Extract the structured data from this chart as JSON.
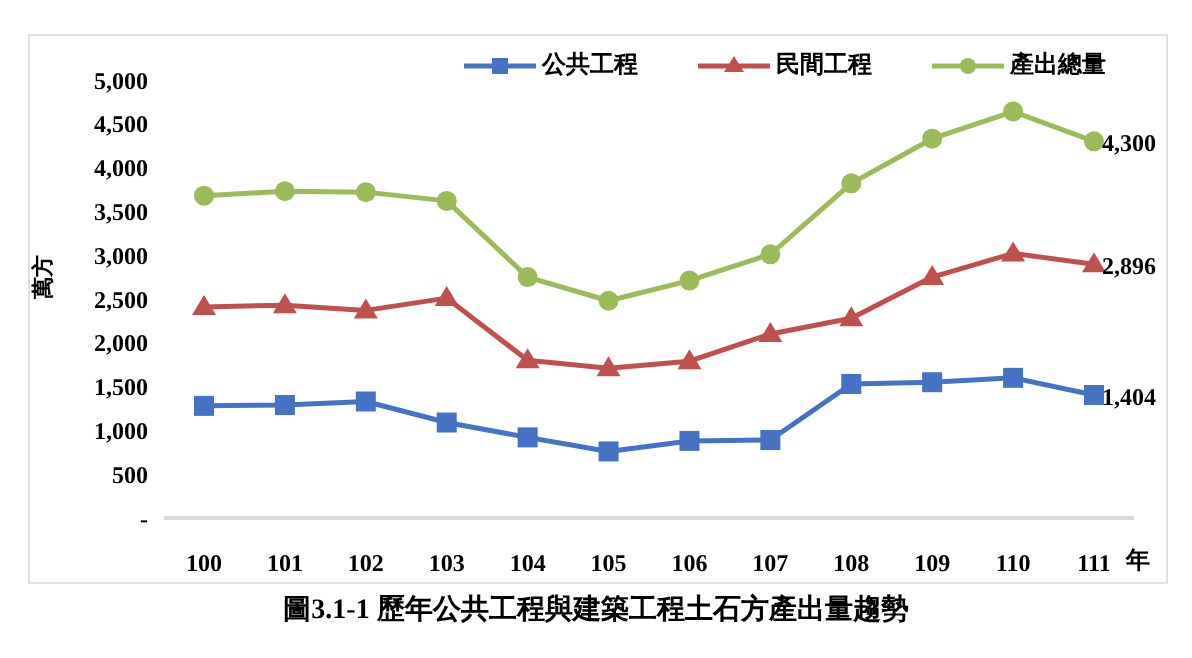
{
  "chart_data": {
    "type": "line",
    "title": "圖3.1-1 歷年公共工程與建築工程土石方產出量趨勢",
    "xlabel": "年",
    "ylabel": "萬方",
    "categories": [
      "100",
      "101",
      "102",
      "103",
      "104",
      "105",
      "106",
      "107",
      "108",
      "109",
      "110",
      "111"
    ],
    "series": [
      {
        "name": "公共工程",
        "color": "#4472c4",
        "marker": "square",
        "values": [
          1280,
          1290,
          1330,
          1090,
          920,
          760,
          880,
          890,
          1530,
          1550,
          1600,
          1404
        ],
        "value_labels": [
          null,
          null,
          null,
          null,
          null,
          null,
          null,
          null,
          null,
          null,
          null,
          "1,404"
        ]
      },
      {
        "name": "民間工程",
        "color": "#c0504d",
        "marker": "triangle",
        "values": [
          2410,
          2430,
          2370,
          2510,
          1800,
          1710,
          1790,
          2100,
          2280,
          2750,
          3020,
          2896
        ],
        "value_labels": [
          null,
          null,
          null,
          null,
          null,
          null,
          null,
          null,
          null,
          null,
          null,
          "2,896"
        ]
      },
      {
        "name": "產出總量",
        "color": "#9bbb59",
        "marker": "circle",
        "values": [
          3680,
          3730,
          3720,
          3620,
          2750,
          2480,
          2710,
          3010,
          3820,
          4330,
          4640,
          4300
        ],
        "value_labels": [
          null,
          null,
          null,
          null,
          null,
          null,
          null,
          null,
          null,
          null,
          null,
          "4,300"
        ]
      }
    ],
    "ylim": [
      0,
      5000
    ],
    "yticks": [
      {
        "value": 0,
        "label": "-"
      },
      500,
      {
        "value": 1000,
        "label": "1,000"
      },
      {
        "value": 1500,
        "label": "1,500"
      },
      {
        "value": 2000,
        "label": "2,000"
      },
      {
        "value": 2500,
        "label": "2,500"
      },
      {
        "value": 3000,
        "label": "3,000"
      },
      {
        "value": 3500,
        "label": "3,500"
      },
      {
        "value": 4000,
        "label": "4,000"
      },
      {
        "value": 4500,
        "label": "4,500"
      },
      {
        "value": 5000,
        "label": "5,000"
      }
    ],
    "grid": false,
    "legend": "top right",
    "line_style": "solid"
  }
}
